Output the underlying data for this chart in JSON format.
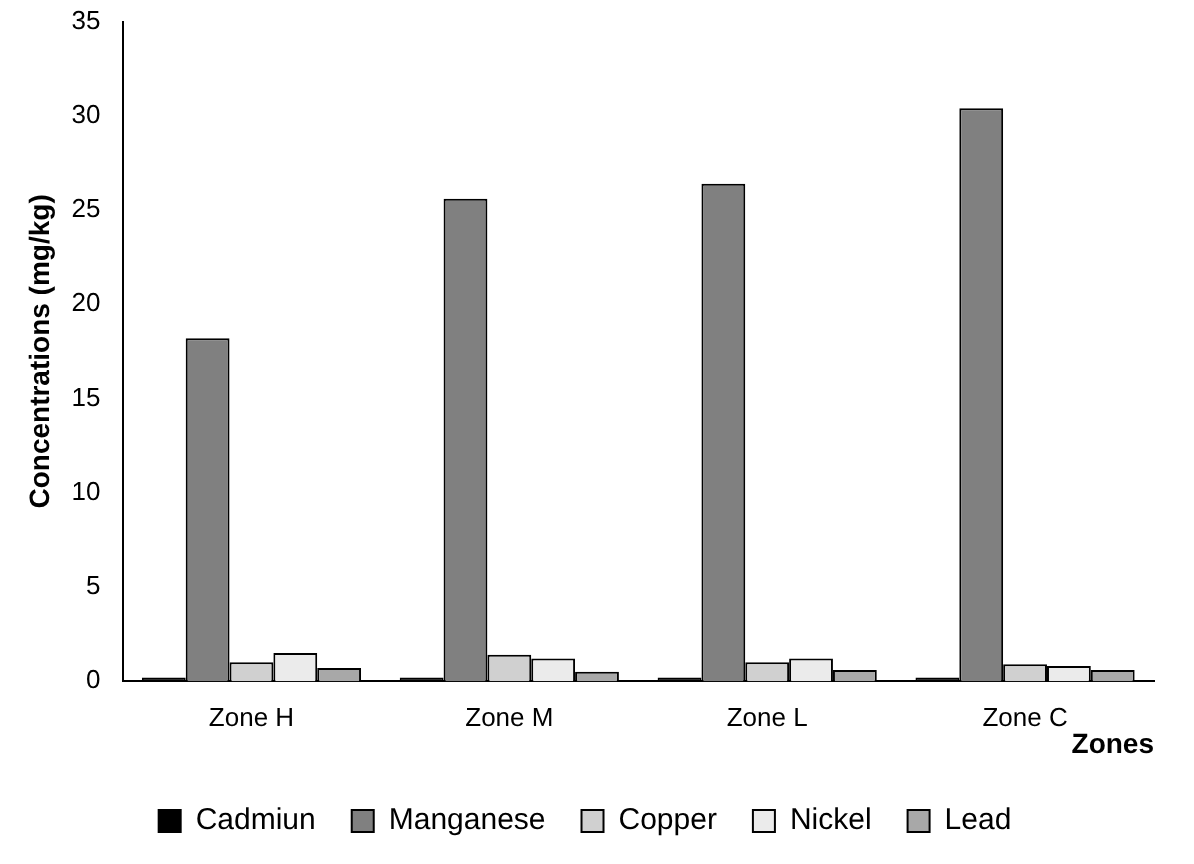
{
  "chart_data": {
    "type": "bar",
    "xlabel": "Zones",
    "ylabel": "Concentrations (mg/kg)",
    "categories": [
      "Zone H",
      "Zone M",
      "Zone L",
      "Zone C"
    ],
    "series": [
      {
        "name": "Cadmiun",
        "color": "#000000",
        "values": [
          0.2,
          0.2,
          0.2,
          0.2
        ]
      },
      {
        "name": "Manganese",
        "color": "#808080",
        "values": [
          18.2,
          25.6,
          26.4,
          30.4
        ]
      },
      {
        "name": "Copper",
        "color": "#d0d0d0",
        "values": [
          1.0,
          1.4,
          1.0,
          0.9
        ]
      },
      {
        "name": "Nickel",
        "color": "#ebebeb",
        "values": [
          1.5,
          1.2,
          1.2,
          0.8
        ]
      },
      {
        "name": "Lead",
        "color": "#a8a8a8",
        "values": [
          0.7,
          0.5,
          0.6,
          0.6
        ]
      }
    ],
    "ylim": [
      0,
      35
    ],
    "yticks": [
      0,
      5,
      10,
      15,
      20,
      25,
      30,
      35
    ],
    "grid": false,
    "legend": "bottom"
  }
}
